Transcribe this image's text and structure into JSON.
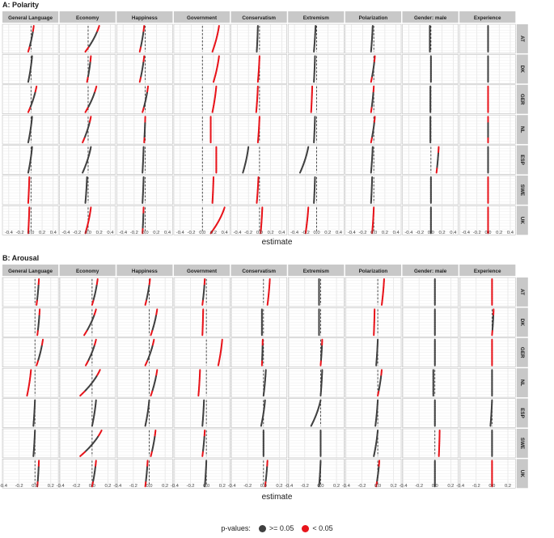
{
  "page": {
    "panel_a_title": "A: Polarity",
    "panel_b_title": "B: Arousal",
    "xlabel": "estimate"
  },
  "legend": {
    "title": "p-values:",
    "items": [
      {
        "label": ">= 0.05",
        "color": "#404040"
      },
      {
        "label": "< 0.05",
        "color": "#e8141b"
      }
    ]
  },
  "colors": {
    "not_significant": "#404040",
    "significant": "#e8141b",
    "strip_bg": "#c8c8c8",
    "grid": "#dcdcdc"
  },
  "chart_data": [
    {
      "type": "line",
      "title": "A: Polarity",
      "xlabel": "estimate",
      "xlim": [
        -0.5,
        0.5
      ],
      "x_ticks": [
        -0.4,
        -0.2,
        0.0,
        0.2,
        0.4
      ],
      "x_tick_labels": [
        "-0.4",
        "-0.2",
        "0.0",
        "0.2",
        "0.4"
      ],
      "column_labels": [
        "General Language",
        "Economy",
        "Happiness",
        "Government",
        "Conservatism",
        "Extremism",
        "Polarization",
        "Gender: male",
        "Experience"
      ],
      "row_labels": [
        "AT",
        "DK",
        "GER",
        "NL",
        "ESP",
        "SWE",
        "UK"
      ],
      "note": "each cell shows a sorted column of estimates (top to bottom) from low to high; red = p < 0.05",
      "cells": [
        [
          {
            "from": -0.05,
            "to": 0.05,
            "sig": "mixed"
          },
          {
            "from": -0.05,
            "to": 0.2,
            "sig": "mixed"
          },
          {
            "from": -0.1,
            "to": -0.02,
            "sig": "mixed"
          },
          {
            "from": 0.18,
            "to": 0.3,
            "sig": "yes"
          },
          {
            "from": -0.05,
            "to": -0.03,
            "sig": "no"
          },
          {
            "from": -0.05,
            "to": -0.02,
            "sig": "no"
          },
          {
            "from": -0.05,
            "to": -0.02,
            "sig": "no"
          },
          {
            "from": -0.02,
            "to": -0.02,
            "sig": "no"
          },
          {
            "from": 0.0,
            "to": 0.0,
            "sig": "no"
          }
        ],
        [
          {
            "from": -0.05,
            "to": 0.02,
            "sig": "no"
          },
          {
            "from": -0.02,
            "to": 0.05,
            "sig": "mixed"
          },
          {
            "from": -0.1,
            "to": -0.02,
            "sig": "mixed"
          },
          {
            "from": 0.2,
            "to": 0.3,
            "sig": "yes"
          },
          {
            "from": -0.03,
            "to": 0.0,
            "sig": "yes"
          },
          {
            "from": -0.05,
            "to": -0.03,
            "sig": "no"
          },
          {
            "from": -0.05,
            "to": 0.02,
            "sig": "mixed"
          },
          {
            "from": 0.0,
            "to": 0.0,
            "sig": "no"
          },
          {
            "from": 0.0,
            "to": 0.0,
            "sig": "no"
          }
        ],
        [
          {
            "from": -0.05,
            "to": 0.1,
            "sig": "mixed"
          },
          {
            "from": -0.05,
            "to": 0.15,
            "sig": "mixed"
          },
          {
            "from": -0.05,
            "to": 0.05,
            "sig": "mixed"
          },
          {
            "from": 0.18,
            "to": 0.25,
            "sig": "yes"
          },
          {
            "from": -0.06,
            "to": -0.03,
            "sig": "yes"
          },
          {
            "from": -0.1,
            "to": -0.08,
            "sig": "yes"
          },
          {
            "from": -0.05,
            "to": 0.0,
            "sig": "mixed"
          },
          {
            "from": -0.01,
            "to": -0.01,
            "sig": "no"
          },
          {
            "from": 0.0,
            "to": 0.0,
            "sig": "yes"
          }
        ],
        [
          {
            "from": -0.05,
            "to": 0.02,
            "sig": "no"
          },
          {
            "from": -0.1,
            "to": 0.05,
            "sig": "mixed"
          },
          {
            "from": -0.02,
            "to": 0.0,
            "sig": "mixed"
          },
          {
            "from": 0.15,
            "to": 0.15,
            "sig": "yes"
          },
          {
            "from": -0.03,
            "to": 0.0,
            "sig": "yes"
          },
          {
            "from": -0.05,
            "to": -0.03,
            "sig": "no"
          },
          {
            "from": -0.05,
            "to": 0.02,
            "sig": "mixed"
          },
          {
            "from": -0.01,
            "to": -0.01,
            "sig": "no"
          },
          {
            "from": 0.0,
            "to": 0.0,
            "sig": "mixed"
          }
        ],
        [
          {
            "from": -0.05,
            "to": 0.02,
            "sig": "no"
          },
          {
            "from": -0.1,
            "to": 0.05,
            "sig": "no"
          },
          {
            "from": -0.05,
            "to": -0.03,
            "sig": "no"
          },
          {
            "from": 0.25,
            "to": 0.25,
            "sig": "yes"
          },
          {
            "from": -0.3,
            "to": -0.2,
            "sig": "no"
          },
          {
            "from": -0.3,
            "to": -0.15,
            "sig": "no"
          },
          {
            "from": -0.05,
            "to": -0.02,
            "sig": "no"
          },
          {
            "from": 0.1,
            "to": 0.14,
            "sig": "mixed"
          },
          {
            "from": 0.0,
            "to": 0.0,
            "sig": "no"
          }
        ],
        [
          {
            "from": -0.05,
            "to": -0.03,
            "sig": "yes"
          },
          {
            "from": -0.05,
            "to": -0.02,
            "sig": "no"
          },
          {
            "from": -0.05,
            "to": -0.03,
            "sig": "no"
          },
          {
            "from": 0.18,
            "to": 0.2,
            "sig": "yes"
          },
          {
            "from": -0.05,
            "to": -0.02,
            "sig": "yes"
          },
          {
            "from": -0.05,
            "to": -0.03,
            "sig": "no"
          },
          {
            "from": -0.05,
            "to": -0.03,
            "sig": "no"
          },
          {
            "from": 0.0,
            "to": 0.0,
            "sig": "no"
          },
          {
            "from": 0.0,
            "to": 0.0,
            "sig": "yes"
          }
        ],
        [
          {
            "from": -0.05,
            "to": -0.03,
            "sig": "yes"
          },
          {
            "from": -0.05,
            "to": 0.05,
            "sig": "yes"
          },
          {
            "from": -0.05,
            "to": -0.03,
            "sig": "mixed"
          },
          {
            "from": 0.15,
            "to": 0.4,
            "sig": "yes"
          },
          {
            "from": 0.02,
            "to": 0.05,
            "sig": "yes"
          },
          {
            "from": -0.2,
            "to": -0.15,
            "sig": "yes"
          },
          {
            "from": -0.03,
            "to": 0.0,
            "sig": "yes"
          },
          {
            "from": 0.0,
            "to": 0.0,
            "sig": "no"
          },
          {
            "from": 0.0,
            "to": 0.0,
            "sig": "yes"
          }
        ]
      ]
    },
    {
      "type": "line",
      "title": "B: Arousal",
      "xlabel": "estimate",
      "xlim": [
        -0.4,
        0.3
      ],
      "x_ticks": [
        -0.4,
        -0.2,
        0.0,
        0.2
      ],
      "x_tick_labels": [
        "-0.4",
        "-0.2",
        "0.0",
        "0.2"
      ],
      "column_labels": [
        "General Language",
        "Economy",
        "Happiness",
        "Government",
        "Conservatism",
        "Extremism",
        "Polarization",
        "Gender: male",
        "Experience"
      ],
      "row_labels": [
        "AT",
        "DK",
        "GER",
        "NL",
        "ESP",
        "SWE",
        "UK"
      ],
      "note": "each cell shows a sorted column of estimates (top to bottom) from low to high; red = p < 0.05",
      "cells": [
        [
          {
            "from": 0.02,
            "to": 0.05,
            "sig": "mixed"
          },
          {
            "from": 0.0,
            "to": 0.07,
            "sig": "mixed"
          },
          {
            "from": -0.05,
            "to": 0.01,
            "sig": "mixed"
          },
          {
            "from": -0.05,
            "to": -0.02,
            "sig": "mixed"
          },
          {
            "from": 0.05,
            "to": 0.08,
            "sig": "yes"
          },
          {
            "from": -0.02,
            "to": -0.02,
            "sig": "no"
          },
          {
            "from": 0.05,
            "to": 0.08,
            "sig": "yes"
          },
          {
            "from": 0.0,
            "to": 0.0,
            "sig": "no"
          },
          {
            "from": 0.0,
            "to": 0.0,
            "sig": "yes"
          }
        ],
        [
          {
            "from": 0.03,
            "to": 0.06,
            "sig": "mixed"
          },
          {
            "from": -0.1,
            "to": 0.05,
            "sig": "mixed"
          },
          {
            "from": 0.02,
            "to": 0.1,
            "sig": "mixed"
          },
          {
            "from": -0.05,
            "to": -0.04,
            "sig": "yes"
          },
          {
            "from": -0.02,
            "to": -0.02,
            "sig": "no"
          },
          {
            "from": -0.02,
            "to": -0.02,
            "sig": "no"
          },
          {
            "from": -0.05,
            "to": -0.04,
            "sig": "yes"
          },
          {
            "from": 0.0,
            "to": 0.0,
            "sig": "no"
          },
          {
            "from": 0.0,
            "to": 0.02,
            "sig": "mixed"
          }
        ],
        [
          {
            "from": 0.02,
            "to": 0.1,
            "sig": "mixed"
          },
          {
            "from": -0.08,
            "to": 0.05,
            "sig": "mixed"
          },
          {
            "from": -0.05,
            "to": 0.06,
            "sig": "mixed"
          },
          {
            "from": 0.15,
            "to": 0.2,
            "sig": "yes"
          },
          {
            "from": -0.02,
            "to": -0.01,
            "sig": "mixed"
          },
          {
            "from": 0.0,
            "to": 0.02,
            "sig": "mixed"
          },
          {
            "from": -0.02,
            "to": 0.0,
            "sig": "no"
          },
          {
            "from": 0.0,
            "to": 0.0,
            "sig": "no"
          },
          {
            "from": 0.0,
            "to": 0.0,
            "sig": "yes"
          }
        ],
        [
          {
            "from": -0.1,
            "to": -0.05,
            "sig": "yes"
          },
          {
            "from": -0.15,
            "to": 0.1,
            "sig": "mixed"
          },
          {
            "from": 0.02,
            "to": 0.1,
            "sig": "mixed"
          },
          {
            "from": -0.1,
            "to": -0.08,
            "sig": "yes"
          },
          {
            "from": 0.0,
            "to": 0.03,
            "sig": "no"
          },
          {
            "from": 0.0,
            "to": 0.02,
            "sig": "no"
          },
          {
            "from": 0.0,
            "to": 0.05,
            "sig": "mixed"
          },
          {
            "from": -0.02,
            "to": -0.02,
            "sig": "no"
          },
          {
            "from": 0.0,
            "to": 0.0,
            "sig": "no"
          }
        ],
        [
          {
            "from": -0.02,
            "to": 0.0,
            "sig": "no"
          },
          {
            "from": 0.0,
            "to": 0.05,
            "sig": "no"
          },
          {
            "from": -0.05,
            "to": 0.0,
            "sig": "no"
          },
          {
            "from": -0.05,
            "to": -0.03,
            "sig": "no"
          },
          {
            "from": -0.03,
            "to": 0.02,
            "sig": "no"
          },
          {
            "from": -0.12,
            "to": 0.0,
            "sig": "no"
          },
          {
            "from": -0.03,
            "to": 0.0,
            "sig": "no"
          },
          {
            "from": 0.0,
            "to": 0.0,
            "sig": "no"
          },
          {
            "from": -0.02,
            "to": 0.0,
            "sig": "no"
          }
        ],
        [
          {
            "from": -0.02,
            "to": 0.0,
            "sig": "no"
          },
          {
            "from": -0.15,
            "to": 0.12,
            "sig": "mixed"
          },
          {
            "from": 0.02,
            "to": 0.08,
            "sig": "mixed"
          },
          {
            "from": -0.05,
            "to": -0.02,
            "sig": "mixed"
          },
          {
            "from": 0.0,
            "to": 0.0,
            "sig": "no"
          },
          {
            "from": 0.0,
            "to": 0.0,
            "sig": "no"
          },
          {
            "from": -0.05,
            "to": 0.0,
            "sig": "no"
          },
          {
            "from": 0.05,
            "to": 0.06,
            "sig": "yes"
          },
          {
            "from": 0.0,
            "to": 0.0,
            "sig": "no"
          }
        ],
        [
          {
            "from": 0.03,
            "to": 0.05,
            "sig": "mixed"
          },
          {
            "from": 0.0,
            "to": 0.05,
            "sig": "mixed"
          },
          {
            "from": -0.05,
            "to": -0.02,
            "sig": "mixed"
          },
          {
            "from": -0.02,
            "to": 0.0,
            "sig": "no"
          },
          {
            "from": 0.02,
            "to": 0.05,
            "sig": "mixed"
          },
          {
            "from": -0.02,
            "to": 0.0,
            "sig": "no"
          },
          {
            "from": -0.02,
            "to": 0.02,
            "sig": "mixed"
          },
          {
            "from": 0.0,
            "to": 0.0,
            "sig": "no"
          },
          {
            "from": 0.0,
            "to": 0.0,
            "sig": "yes"
          }
        ]
      ]
    }
  ]
}
